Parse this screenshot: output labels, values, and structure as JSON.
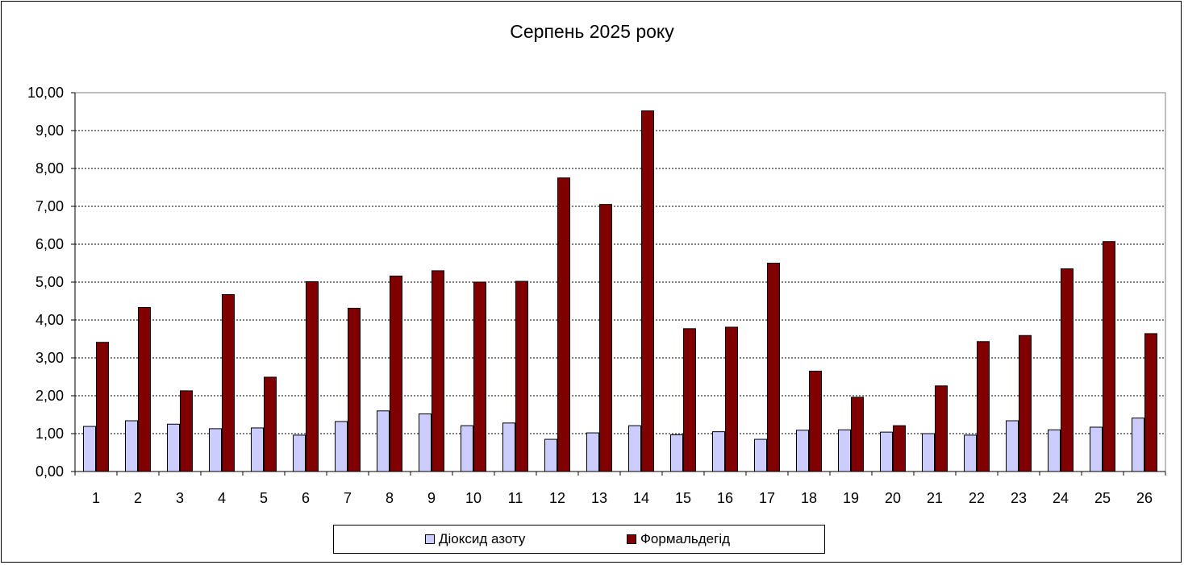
{
  "chart_data": {
    "type": "bar",
    "title": "Серпень 2025 року",
    "xlabel": "",
    "ylabel": "",
    "ylim": [
      0,
      10
    ],
    "yticks": [
      "0,00",
      "1,00",
      "2,00",
      "3,00",
      "4,00",
      "5,00",
      "6,00",
      "7,00",
      "8,00",
      "9,00",
      "10,00"
    ],
    "categories": [
      "1",
      "2",
      "3",
      "4",
      "5",
      "6",
      "7",
      "8",
      "9",
      "10",
      "11",
      "12",
      "13",
      "14",
      "15",
      "16",
      "17",
      "18",
      "19",
      "20",
      "21",
      "22",
      "23",
      "24",
      "25",
      "26"
    ],
    "grid": true,
    "legend_position": "bottom",
    "series": [
      {
        "name": "Діоксид азоту",
        "color": "#ccccff",
        "values": [
          1.19,
          1.34,
          1.25,
          1.13,
          1.15,
          0.96,
          1.32,
          1.6,
          1.52,
          1.21,
          1.28,
          0.85,
          1.02,
          1.21,
          0.97,
          1.05,
          0.85,
          1.09,
          1.1,
          1.04,
          1.0,
          0.96,
          1.34,
          1.1,
          1.17,
          1.41
        ]
      },
      {
        "name": "Формальдегід",
        "color": "#800000",
        "values": [
          3.41,
          4.33,
          2.13,
          4.67,
          2.49,
          5.01,
          4.31,
          5.16,
          5.3,
          5.0,
          5.02,
          7.75,
          7.05,
          9.52,
          3.77,
          3.81,
          5.5,
          2.65,
          1.96,
          1.21,
          2.26,
          3.43,
          3.59,
          5.35,
          6.07,
          3.64
        ]
      }
    ]
  }
}
